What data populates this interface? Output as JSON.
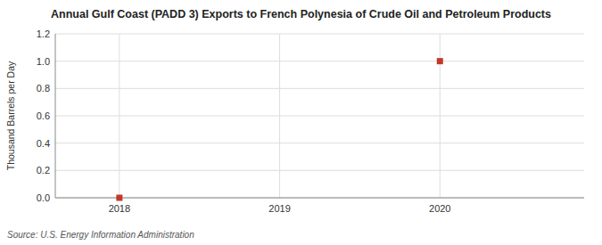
{
  "chart_data": {
    "type": "scatter",
    "title": "Annual Gulf Coast (PADD 3) Exports to French Polynesia of Crude Oil and Petroleum Products",
    "y_label": "Thousand Barrels per Day",
    "source": "Source: U.S. Energy Information Administration",
    "x": [
      2018,
      2020
    ],
    "values": [
      0.0,
      1.0
    ],
    "color": "#c0392b",
    "marker": "square",
    "xlim": [
      2017.6,
      2020.9
    ],
    "ylim": [
      0.0,
      1.2
    ],
    "xticks": [
      2018,
      2019,
      2020
    ],
    "yticks": [
      {
        "value": 0.0,
        "label": "0.0"
      },
      0.2,
      0.4,
      0.6,
      0.8,
      {
        "value": 1.0,
        "label": "1.0"
      },
      1.2
    ],
    "grid": true
  }
}
